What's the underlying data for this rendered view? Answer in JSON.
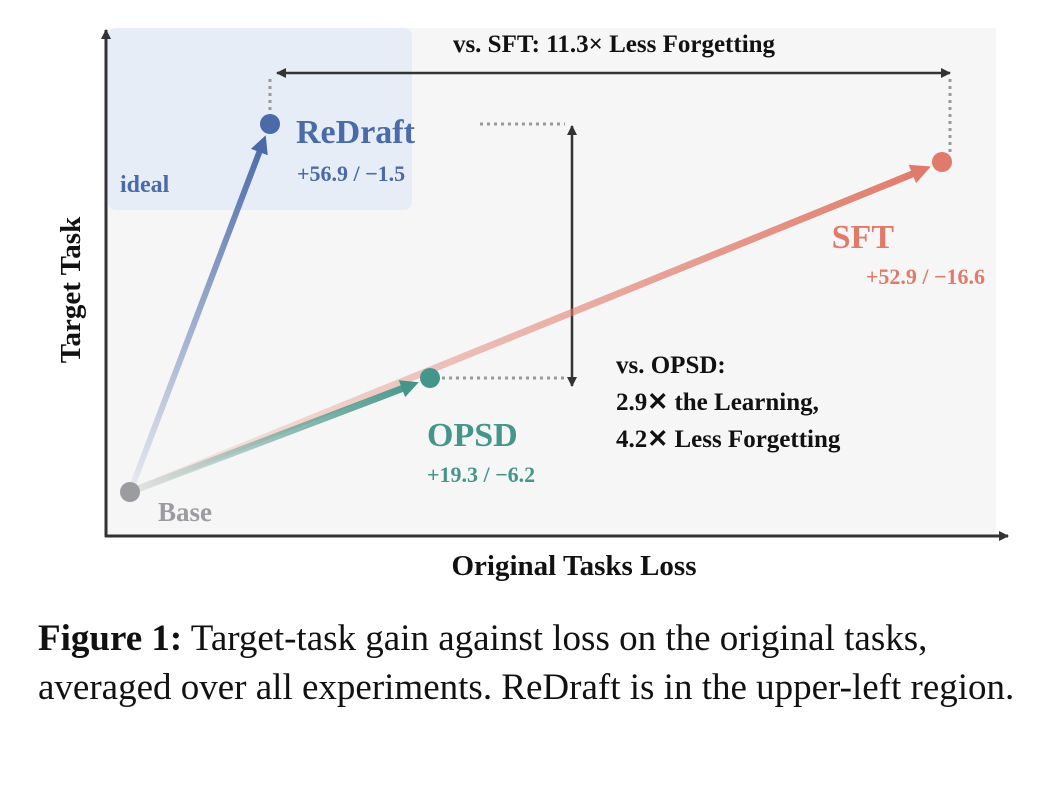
{
  "chart_data": {
    "type": "scatter",
    "xlabel": "Original Tasks Loss",
    "ylabel": "Target Task",
    "region_label": "ideal",
    "points": [
      {
        "name": "Base",
        "x": 0,
        "y": 0,
        "color": "#9a9ca0"
      },
      {
        "name": "ReDraft",
        "x": 1.5,
        "y": 56.9,
        "gain_label": "+56.9",
        "loss_label": "−1.5",
        "color": "#4a6aa8"
      },
      {
        "name": "OPSD",
        "x": 6.2,
        "y": 19.3,
        "gain_label": "+19.3",
        "loss_label": "−6.2",
        "color": "#45968a"
      },
      {
        "name": "SFT",
        "x": 16.6,
        "y": 52.9,
        "gain_label": "+52.9",
        "loss_label": "−16.6",
        "color": "#e07b6b"
      }
    ],
    "separator": "/",
    "annotations": {
      "sft": "vs. SFT:  11.3× Less Forgetting",
      "opsd_title": "vs. OPSD:",
      "opsd_line1": "2.9✕ the Learning,",
      "opsd_line2": "4.2✕ Less Forgetting"
    }
  },
  "caption": {
    "label": "Figure 1:",
    "text": " Target-task gain against loss on the original tasks, averaged over all experiments. ReDraft is in the upper-left region."
  }
}
